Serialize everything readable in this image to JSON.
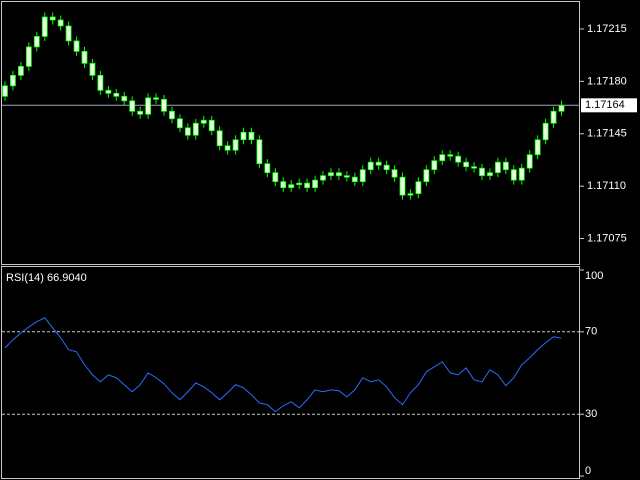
{
  "chart_data": [
    {
      "type": "candlestick",
      "open": [
        1.1717,
        1.17177,
        1.17184,
        1.1719,
        1.17203,
        1.1721,
        1.17223,
        1.17221,
        1.17217,
        1.17207,
        1.172,
        1.17192,
        1.17184,
        1.17174,
        1.17172,
        1.1717,
        1.17167,
        1.1716,
        1.17158,
        1.17169,
        1.17168,
        1.1716,
        1.17155,
        1.17149,
        1.17144,
        1.17152,
        1.17154,
        1.17147,
        1.17137,
        1.17134,
        1.17141,
        1.17146,
        1.17141,
        1.17125,
        1.17119,
        1.17113,
        1.17109,
        1.17111,
        1.17112,
        1.17109,
        1.17114,
        1.17117,
        1.17119,
        1.17117,
        1.17116,
        1.17113,
        1.17121,
        1.17126,
        1.17124,
        1.17121,
        1.17116,
        1.17104,
        1.17105,
        1.17113,
        1.17121,
        1.17127,
        1.17131,
        1.1713,
        1.17126,
        1.17123,
        1.17122,
        1.17117,
        1.17119,
        1.17126,
        1.17121,
        1.17114,
        1.17122,
        1.17131,
        1.17141,
        1.17152,
        1.1716
      ],
      "high": [
        1.1718,
        1.17187,
        1.17193,
        1.17206,
        1.17213,
        1.17226,
        1.17226,
        1.17224,
        1.1722,
        1.1721,
        1.17203,
        1.17195,
        1.17187,
        1.17177,
        1.17175,
        1.17173,
        1.1717,
        1.17163,
        1.17172,
        1.17172,
        1.17171,
        1.17163,
        1.17158,
        1.17152,
        1.17155,
        1.17157,
        1.17157,
        1.1715,
        1.1714,
        1.17144,
        1.17149,
        1.17149,
        1.17144,
        1.17128,
        1.17122,
        1.17116,
        1.17114,
        1.17115,
        1.17115,
        1.17117,
        1.1712,
        1.17122,
        1.17122,
        1.1712,
        1.17119,
        1.17124,
        1.17129,
        1.17129,
        1.17127,
        1.17124,
        1.17119,
        1.17108,
        1.17116,
        1.17124,
        1.1713,
        1.17134,
        1.17134,
        1.17133,
        1.17129,
        1.17126,
        1.17125,
        1.17122,
        1.17129,
        1.17129,
        1.17124,
        1.17125,
        1.17134,
        1.17144,
        1.17155,
        1.17163,
        1.17167
      ],
      "low": [
        1.17167,
        1.17174,
        1.17181,
        1.17187,
        1.172,
        1.17207,
        1.17218,
        1.17214,
        1.17204,
        1.17197,
        1.17189,
        1.17181,
        1.17171,
        1.17169,
        1.17167,
        1.17164,
        1.17157,
        1.17155,
        1.17155,
        1.17165,
        1.17157,
        1.17152,
        1.17146,
        1.17141,
        1.17141,
        1.17149,
        1.17144,
        1.17134,
        1.17131,
        1.17131,
        1.17138,
        1.17138,
        1.17122,
        1.17116,
        1.1711,
        1.17106,
        1.17106,
        1.17108,
        1.17106,
        1.17106,
        1.17111,
        1.17114,
        1.17114,
        1.17113,
        1.1711,
        1.1711,
        1.17118,
        1.17121,
        1.17118,
        1.17113,
        1.17101,
        1.17101,
        1.17102,
        1.1711,
        1.17118,
        1.17124,
        1.17127,
        1.17123,
        1.1712,
        1.17119,
        1.17114,
        1.17114,
        1.17116,
        1.17118,
        1.17111,
        1.17111,
        1.17119,
        1.17128,
        1.17138,
        1.17149,
        1.17157
      ],
      "close": [
        1.17177,
        1.17184,
        1.1719,
        1.17203,
        1.1721,
        1.17223,
        1.17221,
        1.17217,
        1.17207,
        1.172,
        1.17192,
        1.17184,
        1.17174,
        1.17172,
        1.1717,
        1.17167,
        1.1716,
        1.17158,
        1.17169,
        1.17168,
        1.1716,
        1.17155,
        1.17149,
        1.17144,
        1.17152,
        1.17154,
        1.17147,
        1.17137,
        1.17134,
        1.17141,
        1.17146,
        1.17141,
        1.17125,
        1.17119,
        1.17113,
        1.17109,
        1.17111,
        1.17112,
        1.17109,
        1.17114,
        1.17117,
        1.17119,
        1.17117,
        1.17116,
        1.17113,
        1.17121,
        1.17126,
        1.17124,
        1.17121,
        1.17116,
        1.17104,
        1.17105,
        1.17113,
        1.17121,
        1.17127,
        1.17131,
        1.1713,
        1.17126,
        1.17123,
        1.17122,
        1.17117,
        1.17119,
        1.17126,
        1.17121,
        1.17114,
        1.17122,
        1.17131,
        1.17141,
        1.17152,
        1.1716,
        1.17164
      ],
      "body_color": "#e8ffe0",
      "wick_color": "#00ff00",
      "ylim": [
        1.17058,
        1.17233
      ],
      "yticks": [
        {
          "value": 1.17075,
          "label": "1.17075"
        },
        {
          "value": 1.1711,
          "label": "1.17110"
        },
        {
          "value": 1.17145,
          "label": "1.17145"
        },
        {
          "value": 1.1718,
          "label": "1.17180"
        },
        {
          "value": 1.17215,
          "label": "1.17215"
        }
      ],
      "current_price": 1.17164
    },
    {
      "type": "line",
      "title": "RSI(14) 66.9040",
      "color": "#2a6cff",
      "values": [
        62.2,
        66.1,
        69.5,
        72.4,
        74.9,
        76.8,
        71.9,
        67.1,
        61.3,
        60.3,
        54.0,
        49.1,
        45.7,
        49.1,
        47.7,
        44.3,
        40.9,
        44.3,
        50.1,
        47.7,
        44.8,
        40.4,
        37.0,
        40.9,
        45.2,
        43.3,
        40.4,
        37.0,
        40.4,
        44.3,
        42.8,
        39.4,
        35.5,
        34.6,
        31.2,
        34.1,
        36.0,
        33.1,
        37.0,
        41.8,
        40.9,
        41.8,
        41.4,
        38.4,
        41.8,
        47.7,
        45.7,
        46.7,
        43.3,
        38.0,
        34.6,
        40.4,
        44.3,
        50.6,
        53.0,
        55.4,
        50.1,
        49.1,
        52.5,
        46.7,
        45.7,
        51.6,
        49.1,
        43.8,
        47.7,
        54.0,
        57.4,
        61.3,
        64.7,
        67.6,
        66.9
      ],
      "ylim": [
        0,
        100
      ],
      "yticks": [
        0,
        30,
        70,
        100
      ],
      "levels": [
        70,
        30
      ]
    }
  ]
}
